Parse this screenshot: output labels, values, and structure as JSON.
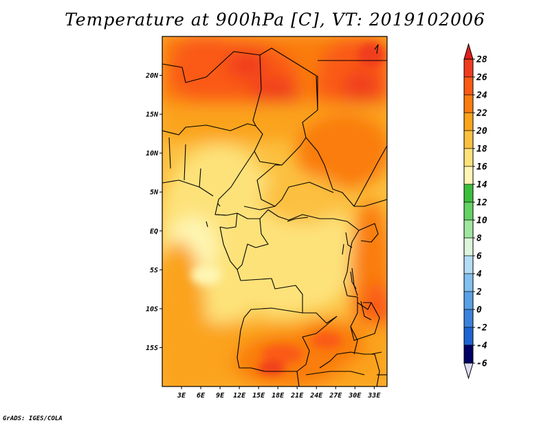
{
  "title": "Temperature at 900hPa [C], VT: 2019102006",
  "credit": "GrADS: IGES/COLA",
  "map": {
    "lon_range": [
      0,
      35
    ],
    "lat_range": [
      -20,
      25
    ],
    "lat_ticks": [
      {
        "value": 20,
        "label": "20N"
      },
      {
        "value": 15,
        "label": "15N"
      },
      {
        "value": 10,
        "label": "10N"
      },
      {
        "value": 5,
        "label": "5N"
      },
      {
        "value": 0,
        "label": "EQ"
      },
      {
        "value": -5,
        "label": "5S"
      },
      {
        "value": -10,
        "label": "10S"
      },
      {
        "value": -15,
        "label": "15S"
      }
    ],
    "lon_ticks": [
      {
        "value": 3,
        "label": "3E"
      },
      {
        "value": 6,
        "label": "6E"
      },
      {
        "value": 9,
        "label": "9E"
      },
      {
        "value": 12,
        "label": "12E"
      },
      {
        "value": 15,
        "label": "15E"
      },
      {
        "value": 18,
        "label": "18E"
      },
      {
        "value": 21,
        "label": "21E"
      },
      {
        "value": 24,
        "label": "24E"
      },
      {
        "value": 27,
        "label": "27E"
      },
      {
        "value": 30,
        "label": "30E"
      },
      {
        "value": 33,
        "label": "33E"
      }
    ]
  },
  "colorbar": {
    "levels": [
      {
        "label": "28",
        "color": "#f03c1e"
      },
      {
        "label": "26",
        "color": "#fa5a14"
      },
      {
        "label": "24",
        "color": "#fa7d0f"
      },
      {
        "label": "22",
        "color": "#fba31c"
      },
      {
        "label": "20",
        "color": "#fcc040"
      },
      {
        "label": "18",
        "color": "#fde27a"
      },
      {
        "label": "16",
        "color": "#fef6b4"
      },
      {
        "label": "14",
        "color": "#3cbe3c"
      },
      {
        "label": "12",
        "color": "#64d264"
      },
      {
        "label": "10",
        "color": "#a0e6a0"
      },
      {
        "label": "8",
        "color": "#dcf5dc"
      },
      {
        "label": "6",
        "color": "#b4dcf5"
      },
      {
        "label": "4",
        "color": "#82c0f0"
      },
      {
        "label": "2",
        "color": "#5aa0e6"
      },
      {
        "label": "0",
        "color": "#3c82dc"
      },
      {
        "label": "-2",
        "color": "#1e64d2"
      },
      {
        "label": "-4",
        "color": "#1446b4"
      },
      {
        "label": "-6",
        "color": "#0a2896"
      }
    ],
    "top_color": "#e11e1e",
    "bottom_color": "#dcdcf5",
    "deep_color": "#000064"
  }
}
